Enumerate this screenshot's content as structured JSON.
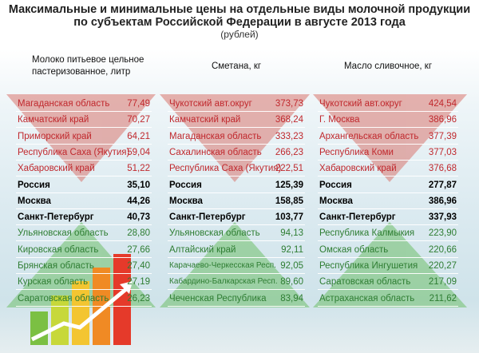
{
  "header": {
    "title_line1": "Максимальные и минимальные цены на отдельные виды молочной продукции",
    "title_line2": "по субъектам Российской Федерации в августе 2013 года",
    "subtitle": "(рублей)"
  },
  "columns": [
    {
      "header": "Молоко питьевое цельное пастеризованное, литр",
      "groups": [
        [
          [
            "Магаданская область",
            "77,49"
          ],
          [
            "Камчатский край",
            "70,27"
          ],
          [
            "Приморский край",
            "64,21"
          ],
          [
            "Республика Саха (Якутия)",
            "59,04"
          ],
          [
            "Хабаровский край",
            "51,22"
          ]
        ],
        [
          [
            "Россия",
            "35,10"
          ],
          [
            "Москва",
            "44,26"
          ],
          [
            "Санкт-Петербург",
            "40,73"
          ]
        ],
        [
          [
            "Ульяновская область",
            "28,80"
          ],
          [
            "Кировская область",
            "27,66"
          ],
          [
            "Брянская область",
            "27,40"
          ],
          [
            "Курская область",
            "27,19"
          ],
          [
            "Саратовская область",
            "26,23"
          ]
        ]
      ]
    },
    {
      "header": "Сметана, кг",
      "groups": [
        [
          [
            "Чукотский авт.округ",
            "373,73"
          ],
          [
            "Камчатский край",
            "368,24"
          ],
          [
            "Магаданская область",
            "333,23"
          ],
          [
            "Сахалинская область",
            "266,23"
          ],
          [
            "Республика Саха (Якутия)",
            "222,51"
          ]
        ],
        [
          [
            "Россия",
            "125,39"
          ],
          [
            "Москва",
            "158,85"
          ],
          [
            "Санкт-Петербург",
            "103,77"
          ]
        ],
        [
          [
            "Ульяновская область",
            "94,13"
          ],
          [
            "Алтайский край",
            "92,11"
          ],
          [
            "Карачаево-Черкесская Респ.",
            "92,05"
          ],
          [
            "Кабардино-Балкарская Респ.",
            "89,60"
          ],
          [
            "Чеченская Республика",
            "83,94"
          ]
        ]
      ]
    },
    {
      "header": "Масло сливочное, кг",
      "groups": [
        [
          [
            "Чукотский авт.округ",
            "424,54"
          ],
          [
            "Г. Москва",
            "386,96"
          ],
          [
            "Архангельская область",
            "377,39"
          ],
          [
            "Республика Коми",
            "377,03"
          ],
          [
            "Хабаровский край",
            "376,68"
          ]
        ],
        [
          [
            "Россия",
            "277,87"
          ],
          [
            "Москва",
            "386,96"
          ],
          [
            "Санкт-Петербург",
            "337,93"
          ]
        ],
        [
          [
            "Республика Калмыкия",
            "223,90"
          ],
          [
            "Омская область",
            "220,66"
          ],
          [
            "Республика Ингушетия",
            "220,27"
          ],
          [
            "Саратовская область",
            "217,09"
          ],
          [
            "Астраханская область",
            "211,62"
          ]
        ]
      ]
    }
  ]
}
